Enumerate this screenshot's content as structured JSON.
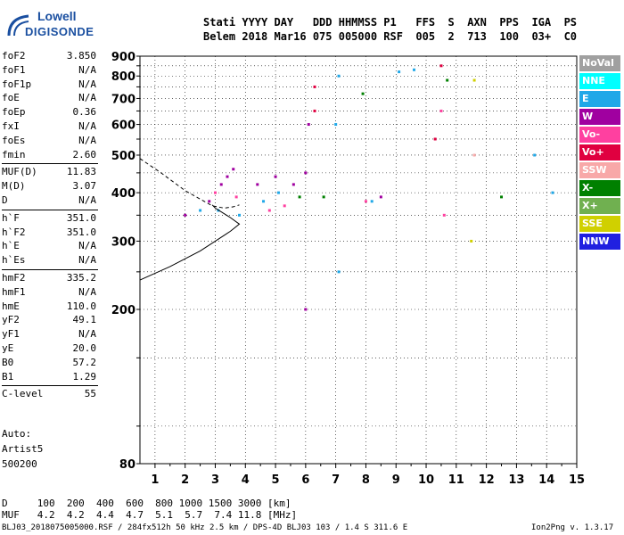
{
  "logo": {
    "line1": "Lowell",
    "line2": "DIGISONDE"
  },
  "header": {
    "line1": "Stati YYYY DAY   DDD HHMMSS P1   FFS  S  AXN  PPS  IGA  PS",
    "line2": "Belem 2018 Mar16 075 005000 RSF  005  2  713  100  03+  C0"
  },
  "params_group1": [
    {
      "label": "foF2",
      "value": "3.850"
    },
    {
      "label": "foF1",
      "value": "N/A"
    },
    {
      "label": "foF1p",
      "value": "N/A"
    },
    {
      "label": "foE",
      "value": "N/A"
    },
    {
      "label": "foEp",
      "value": "0.36"
    },
    {
      "label": "fxI",
      "value": "N/A"
    },
    {
      "label": "foEs",
      "value": "N/A"
    },
    {
      "label": "fmin",
      "value": "2.60"
    }
  ],
  "params_group2": [
    {
      "label": "MUF(D)",
      "value": "11.83"
    },
    {
      "label": "M(D)",
      "value": "3.07"
    },
    {
      "label": "D",
      "value": "N/A"
    }
  ],
  "params_group3": [
    {
      "label": "h`F",
      "value": "351.0"
    },
    {
      "label": "h`F2",
      "value": "351.0"
    },
    {
      "label": "h`E",
      "value": "N/A"
    },
    {
      "label": "h`Es",
      "value": "N/A"
    }
  ],
  "params_group4": [
    {
      "label": "hmF2",
      "value": "335.2"
    },
    {
      "label": "hmF1",
      "value": "N/A"
    },
    {
      "label": "hmE",
      "value": "110.0"
    },
    {
      "label": "yF2",
      "value": "49.1"
    },
    {
      "label": "yF1",
      "value": "N/A"
    },
    {
      "label": "yE",
      "value": "20.0"
    },
    {
      "label": "B0",
      "value": "57.2"
    },
    {
      "label": "B1",
      "value": "1.29"
    }
  ],
  "params_group5": [
    {
      "label": "C-level",
      "value": "55"
    }
  ],
  "auto": {
    "l1": "Auto:",
    "l2": "Artist5",
    "l3": "500200"
  },
  "legend": [
    {
      "label": "NoVal",
      "color": "#a0a0a0"
    },
    {
      "label": "NNE",
      "color": "#00ffff"
    },
    {
      "label": "E",
      "color": "#20a8e8"
    },
    {
      "label": "W",
      "color": "#a000a0"
    },
    {
      "label": "Vo-",
      "color": "#ff40a0"
    },
    {
      "label": "Vo+",
      "color": "#e00040"
    },
    {
      "label": "SSW",
      "color": "#f8a8a8"
    },
    {
      "label": "X-",
      "color": "#008000"
    },
    {
      "label": "X+",
      "color": "#70b050"
    },
    {
      "label": "SSE",
      "color": "#d0d000"
    },
    {
      "label": "NNW",
      "color": "#2020e0"
    }
  ],
  "muf_table": {
    "d_row": "D     100  200  400  600  800 1000 1500 3000 [km]",
    "muf_row": "MUF   4.2  4.2  4.4  4.7  5.1  5.7  7.4 11.8 [MHz]"
  },
  "footer": {
    "left": "BLJ03_2018075005000.RSF / 284fx512h 50 kHz 2.5 km / DPS-4D BLJ03 103 / 1.4 S 311.6 E",
    "right": "Ion2Png v. 1.3.17"
  },
  "chart_data": {
    "type": "scatter",
    "title": "",
    "xlabel": "",
    "ylabel": "",
    "xlim": [
      0.5,
      15
    ],
    "ylim": [
      80,
      900
    ],
    "yscale": "log",
    "x_ticks": [
      1,
      2,
      3,
      4,
      5,
      6,
      7,
      8,
      9,
      10,
      11,
      12,
      13,
      14,
      15
    ],
    "y_ticks": [
      80,
      200,
      300,
      400,
      500,
      600,
      700,
      800,
      900
    ],
    "grid": true,
    "series": [
      {
        "values": [
          [
            2.0,
            350,
            "W"
          ],
          [
            2.5,
            360,
            "E"
          ],
          [
            2.8,
            380,
            "W"
          ],
          [
            3.0,
            400,
            "Vo-"
          ],
          [
            3.1,
            360,
            "E"
          ],
          [
            3.2,
            420,
            "W"
          ],
          [
            3.4,
            440,
            "W"
          ],
          [
            3.6,
            460,
            "W"
          ],
          [
            3.7,
            390,
            "Vo-"
          ],
          [
            3.8,
            350,
            "E"
          ],
          [
            4.4,
            420,
            "W"
          ],
          [
            4.6,
            380,
            "E"
          ],
          [
            4.8,
            360,
            "Vo-"
          ],
          [
            5.0,
            440,
            "W"
          ],
          [
            5.1,
            400,
            "E"
          ],
          [
            5.3,
            370,
            "Vo-"
          ],
          [
            5.6,
            420,
            "W"
          ],
          [
            5.8,
            390,
            "X-"
          ],
          [
            6.0,
            200,
            "W"
          ],
          [
            6.0,
            450,
            "W"
          ],
          [
            6.1,
            600,
            "W"
          ],
          [
            6.3,
            650,
            "Vo+"
          ],
          [
            6.3,
            750,
            "Vo+"
          ],
          [
            6.6,
            390,
            "X-"
          ],
          [
            7.0,
            600,
            "E"
          ],
          [
            7.1,
            250,
            "E"
          ],
          [
            7.1,
            800,
            "E"
          ],
          [
            7.9,
            720,
            "X-"
          ],
          [
            8.0,
            380,
            "Vo-"
          ],
          [
            8.2,
            380,
            "E"
          ],
          [
            8.5,
            390,
            "W"
          ],
          [
            9.1,
            820,
            "E"
          ],
          [
            9.6,
            830,
            "E"
          ],
          [
            10.3,
            550,
            "Vo+"
          ],
          [
            10.5,
            650,
            "Vo-"
          ],
          [
            10.5,
            850,
            "Vo+"
          ],
          [
            10.6,
            350,
            "Vo-"
          ],
          [
            10.7,
            780,
            "X-"
          ],
          [
            11.5,
            300,
            "SSE"
          ],
          [
            11.6,
            500,
            "SSW"
          ],
          [
            11.6,
            780,
            "SSE"
          ],
          [
            12.5,
            390,
            "X-"
          ],
          [
            13.6,
            500,
            "E"
          ],
          [
            14.2,
            400,
            "E"
          ]
        ]
      }
    ],
    "lines": [
      {
        "style": "solid",
        "points": [
          [
            0.5,
            238
          ],
          [
            1.5,
            258
          ],
          [
            2.5,
            283
          ],
          [
            3.0,
            300
          ],
          [
            3.5,
            318
          ],
          [
            3.8,
            332
          ],
          [
            3.5,
            345
          ],
          [
            3.0,
            365
          ],
          [
            2.9,
            372
          ]
        ]
      },
      {
        "style": "dashed",
        "points": [
          [
            0.5,
            490
          ],
          [
            1.2,
            450
          ],
          [
            2.0,
            405
          ],
          [
            2.5,
            385
          ],
          [
            2.9,
            370
          ],
          [
            3.3,
            365
          ],
          [
            3.6,
            368
          ],
          [
            3.8,
            372
          ]
        ]
      }
    ]
  }
}
